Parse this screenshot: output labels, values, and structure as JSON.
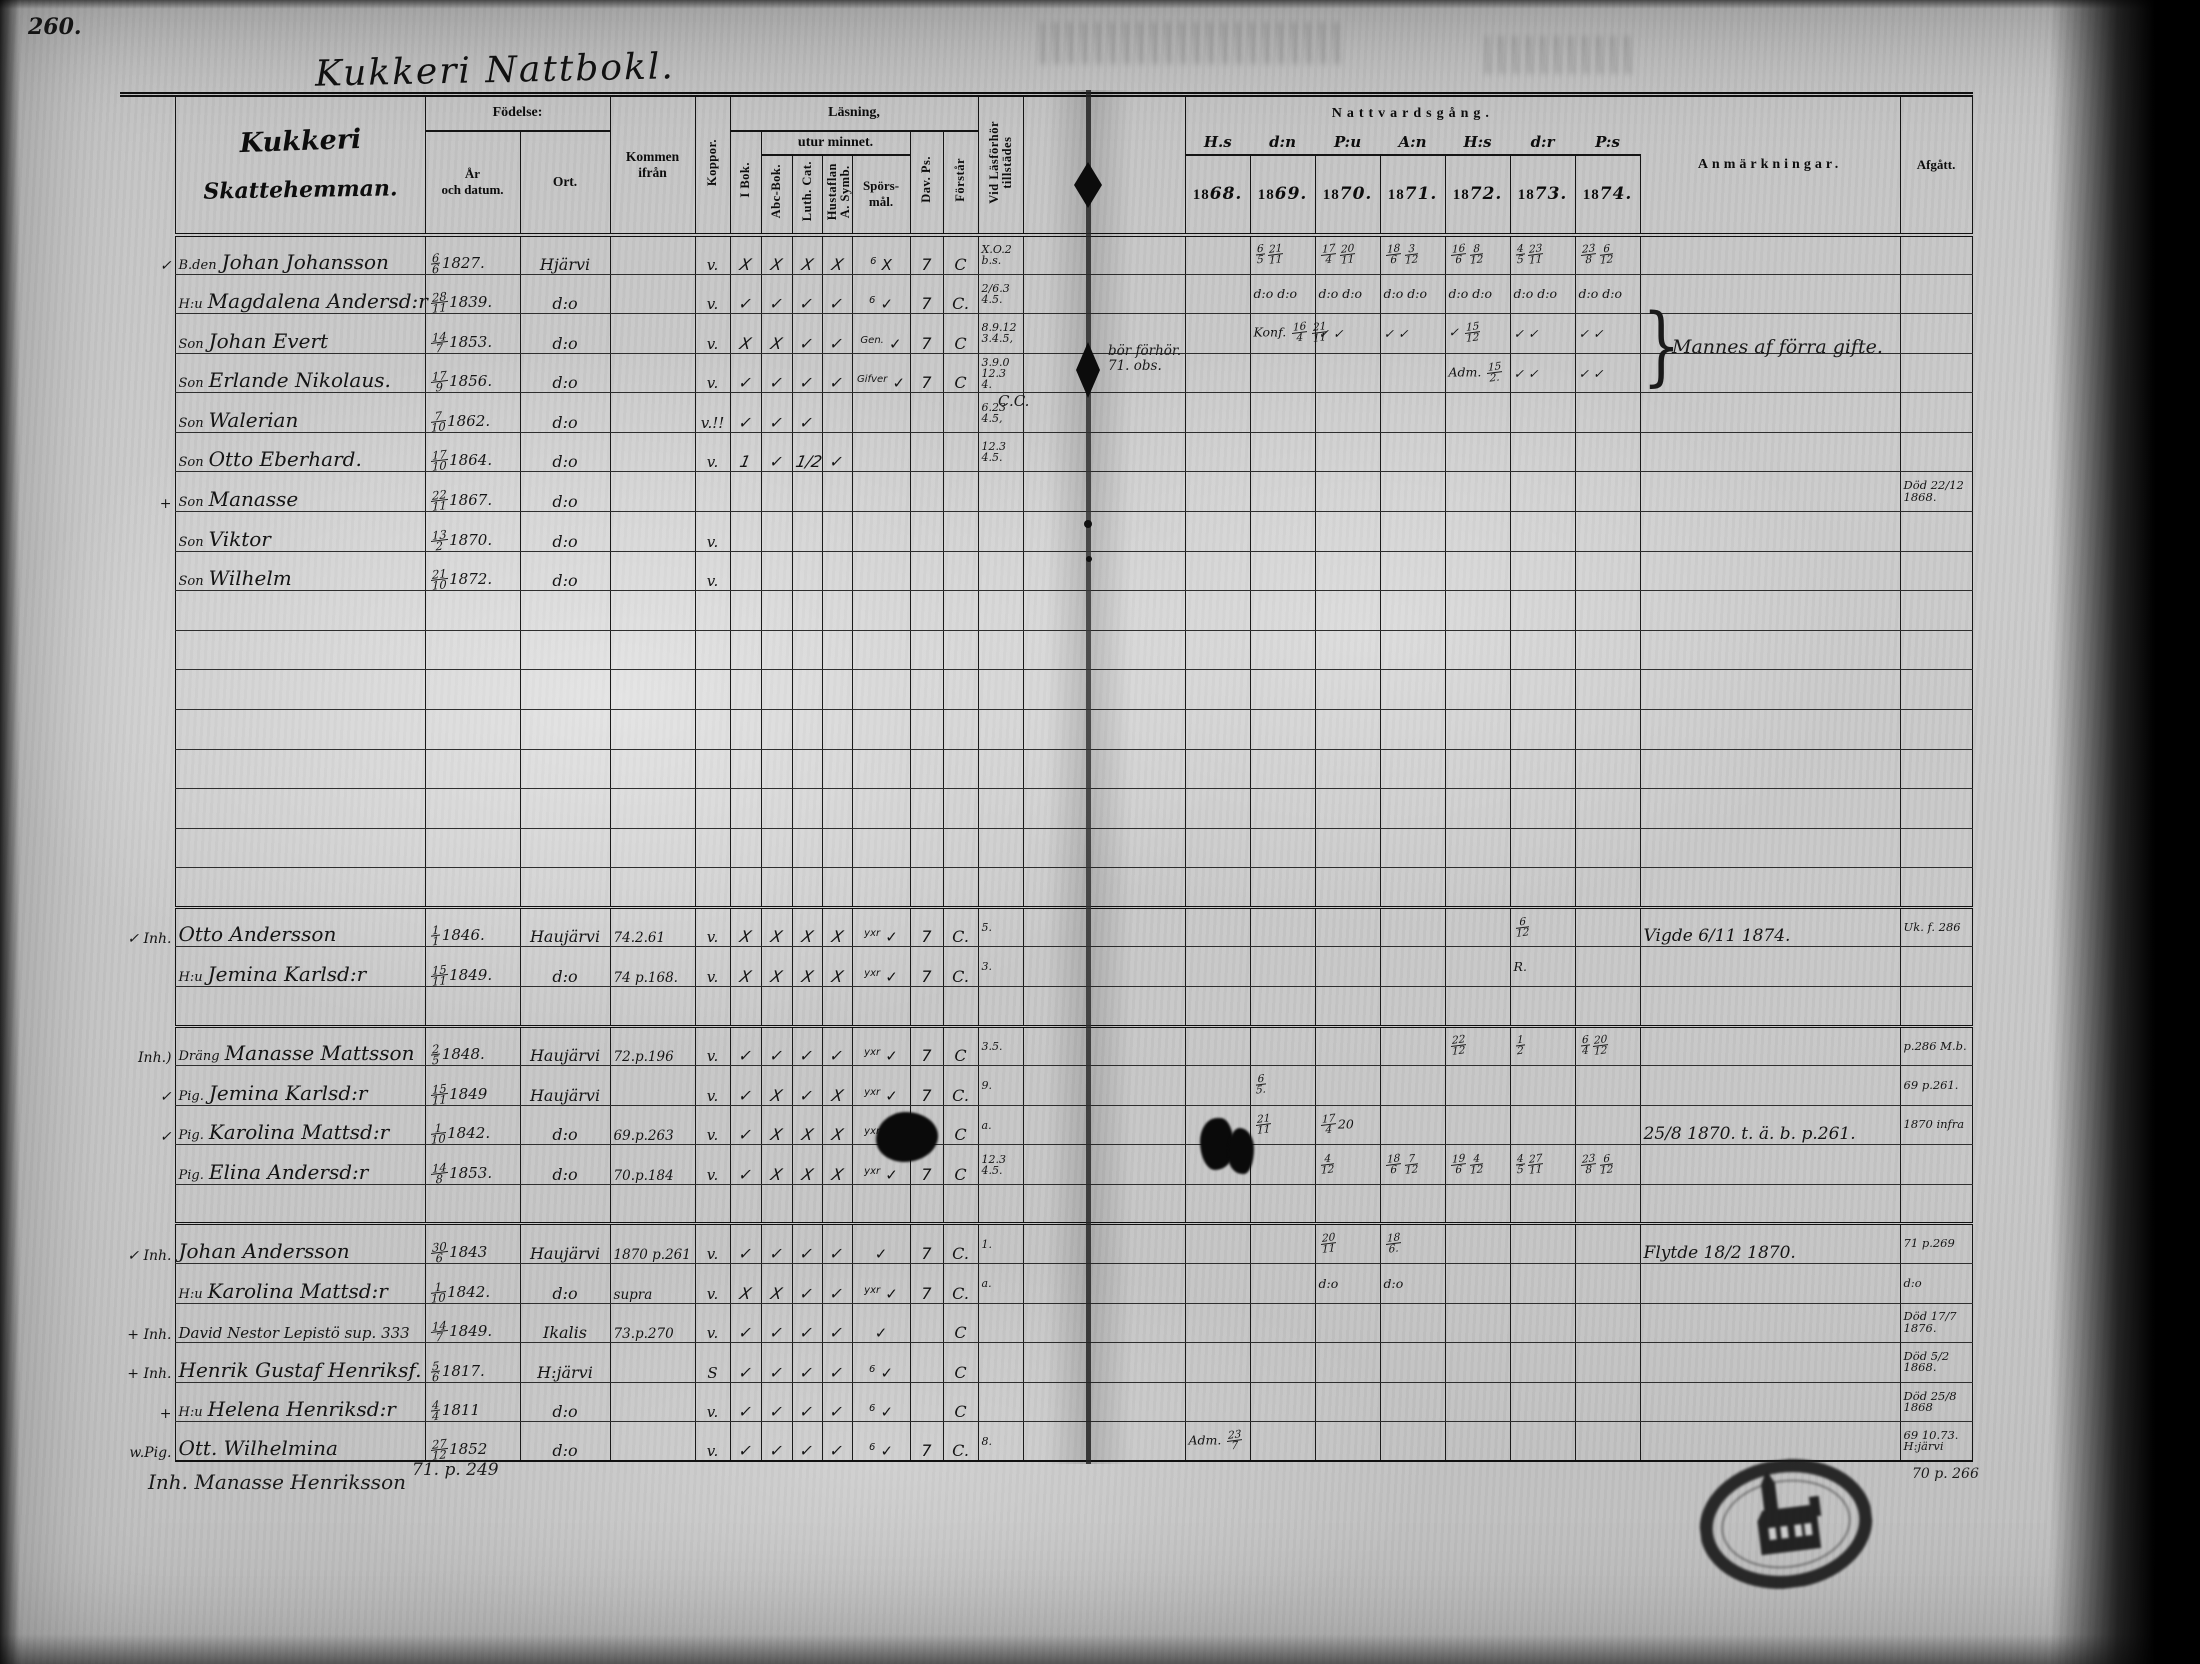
{
  "page": {
    "number": "260.",
    "title": "Kukkeri Nattbokl."
  },
  "header": {
    "farm_line1": "Kukkeri",
    "farm_line2": "Skattehemman.",
    "fodelse": "Födelse:",
    "ar_och_datum": "År\noch datum.",
    "ort": "Ort.",
    "kommen_ifran": "Kommen ifrån",
    "koppor": "Koppor.",
    "lasning": "Läsning,",
    "utur_minnet": "utur minnet.",
    "i_bok": "I Bok.",
    "abc_bok": "Abc-Bok.",
    "luth_cat": "Luth. Cat.",
    "hustaflan": "Hustaflan\nA. Symb.",
    "sporsmal": "Spörs-\nmål.",
    "dav_ps": "Dav. Ps.",
    "forstar": "Förstår",
    "vid_lasforhor": "Vid Läsförhör\ntillstädes",
    "nattvardsgang": "Nattvardsgång.",
    "year_squiggles": [
      "H.s",
      "d:n",
      "P:u",
      "A:n",
      "H:s",
      "d:r",
      "P:s"
    ],
    "years": [
      "1868.",
      "1869.",
      "1870.",
      "1871.",
      "1872.",
      "1873.",
      "1874."
    ],
    "anmarkningar": "Anmärkningar.",
    "afgatt": "Afgått."
  },
  "rows": [
    {
      "m": "✓",
      "p": "B.den",
      "n": "Johan Johansson",
      "d": "6/6 1827.",
      "o": "Hjärvi",
      "c": "v.",
      "b": [
        "X",
        "X",
        "X",
        "X"
      ],
      "sp": "6 X",
      "dav": "7",
      "fo": "C",
      "vid": "X.O.2 b.s.",
      "natt": [
        "",
        "6/5 21/11",
        "17/4 20/11",
        "18/6 3/12",
        "16/6 8/12",
        "4/5 23/11",
        "23/8 6/12"
      ]
    },
    {
      "p": "H:u",
      "n": "Magdalena Andersd:r",
      "d": "28/11 1839.",
      "o": "d:o",
      "c": "v.",
      "b": [
        "✓",
        "✓",
        "✓",
        "✓"
      ],
      "sp": "6 ✓",
      "dav": "7",
      "fo": "C.",
      "vid": "2/6.3 4.5.",
      "natt": [
        "",
        "d:o d:o",
        "d:o d:o",
        "d:o d:o",
        "d:o d:o",
        "d:o d:o",
        "d:o d:o"
      ]
    },
    {
      "p": "Son",
      "n": "Johan Evert",
      "d": "14/7 1853.",
      "o": "d:o",
      "c": "v.",
      "b": [
        "X",
        "X",
        "✓",
        "✓"
      ],
      "sp": "Gen. ✓",
      "dav": "7",
      "fo": "C",
      "vid": "8.9.12 3.4.5,",
      "natt": [
        "",
        "Konf. 16/4 21/11",
        "✓ ✓",
        "✓ ✓",
        "✓ 15/12",
        "✓ ✓",
        "✓ ✓"
      ]
    },
    {
      "p": "Son",
      "n": "Erlande Nikolaus.",
      "d": "17/9 1856.",
      "o": "d:o",
      "c": "v.",
      "b": [
        "✓",
        "✓",
        "✓",
        "✓"
      ],
      "sp": "Gifver ✓",
      "dav": "7",
      "fo": "C",
      "vid": "3.9.0 12.3 4.",
      "natt": [
        "",
        "",
        "",
        "",
        "Adm. 15/2.",
        "✓ ✓",
        "✓ ✓"
      ]
    },
    {
      "p": "Son",
      "n": "Walerian",
      "d": "7/10 1862.",
      "o": "d:o",
      "c": "v.!!",
      "b": [
        "✓",
        "✓",
        "✓",
        ""
      ],
      "sp": "",
      "dav": "",
      "fo": "",
      "vid": "6.23 4.5,"
    },
    {
      "p": "Son",
      "n": "Otto Eberhard.",
      "d": "17/10 1864.",
      "o": "d:o",
      "c": "v.",
      "b": [
        "1",
        "✓",
        "1/2",
        "✓"
      ],
      "sp": "",
      "dav": "",
      "fo": "",
      "vid": "12.3 4.5."
    },
    {
      "m": "+",
      "p": "Son",
      "n": "Manasse",
      "d": "22/11 1867.",
      "o": "d:o",
      "af": "Död 22/12 1868."
    },
    {
      "p": "Son",
      "n": "Viktor",
      "d": "13/2 1870.",
      "o": "d:o",
      "c": "v."
    },
    {
      "p": "Son",
      "n": "Wilhelm",
      "d": "21/10 1872.",
      "o": "d:o",
      "c": "v."
    },
    {},
    {},
    {},
    {},
    {},
    {},
    {},
    {},
    {
      "sep": true,
      "m": "✓ Inh.",
      "n": "Otto Andersson",
      "d": "1/1 1846.",
      "o": "Haujärvi",
      "k": "74.2.61",
      "c": "v.",
      "b": [
        "X",
        "X",
        "X",
        "X"
      ],
      "sp": "yxr ✓",
      "dav": "7",
      "fo": "C.",
      "vid": "5.",
      "natt": [
        "",
        "",
        "",
        "",
        "",
        "6/12",
        ""
      ],
      "anm": "Vigde 6/11 1874.",
      "af": "Uk. f. 286"
    },
    {
      "p": "H:u",
      "n": "Jemina Karlsd:r",
      "d": "15/11 1849.",
      "o": "d:o",
      "k": "74 p.168.",
      "c": "v.",
      "b": [
        "X",
        "X",
        "X",
        "X"
      ],
      "sp": "yxr ✓",
      "dav": "7",
      "fo": "C.",
      "vid": "3.",
      "natt": [
        "",
        "",
        "",
        "",
        "",
        "R.",
        ""
      ]
    },
    {},
    {
      "sep": true,
      "m": "Inh.)",
      "p": "Dräng",
      "n": "Manasse Mattsson",
      "d": "2/5 1848.",
      "o": "Haujärvi",
      "k": "72.p.196",
      "c": "v.",
      "b": [
        "✓",
        "✓",
        "✓",
        "✓"
      ],
      "sp": "yxr ✓",
      "dav": "7",
      "fo": "C",
      "vid": "3.5.",
      "natt": [
        "",
        "",
        "",
        "",
        "22/12",
        "1/2",
        "6/4 20/12"
      ],
      "af": "p.286 M.b."
    },
    {
      "m": "✓",
      "p": "Pig.",
      "n": "Jemina Karlsd:r",
      "d": "15/11 1849",
      "o": "Haujärvi",
      "c": "v.",
      "b": [
        "✓",
        "X",
        "✓",
        "X"
      ],
      "sp": "yxr ✓",
      "dav": "7",
      "fo": "C.",
      "vid": "9.",
      "natt": [
        "",
        "6/5.",
        "",
        "",
        "",
        "",
        ""
      ],
      "af": "69 p.261."
    },
    {
      "m": "✓",
      "p": "Pig.",
      "n": "Karolina Mattsd:r",
      "d": "1/10 1842.",
      "o": "d:o",
      "k": "69.p.263",
      "c": "v.",
      "b": [
        "✓",
        "X",
        "X",
        "X"
      ],
      "sp": "yxr ✓",
      "dav": "",
      "fo": "C",
      "vid": "a.",
      "natt": [
        "",
        "21/11",
        "17/4 20",
        "",
        "",
        "",
        ""
      ],
      "anm": "25/8 1870. t. ä. b. p.261.",
      "af": "1870 infra"
    },
    {
      "p": "Pig.",
      "n": "Elina Andersd:r",
      "d": "14/8 1853.",
      "o": "d:o",
      "k": "70.p.184",
      "c": "v.",
      "b": [
        "✓",
        "X",
        "X",
        "X"
      ],
      "sp": "yxr ✓",
      "dav": "7",
      "fo": "C",
      "vid": "12.3 4.5.",
      "natt": [
        "",
        "",
        "4/12",
        "18/6 7/12",
        "19/6 4/12",
        "4/5 27/11",
        "23/8 6/12"
      ]
    },
    {},
    {
      "sep": true,
      "m": "✓ Inh.",
      "n": "Johan Andersson",
      "d": "30/6 1843",
      "o": "Haujärvi",
      "k": "1870 p.261",
      "c": "v.",
      "b": [
        "✓",
        "✓",
        "✓",
        "✓"
      ],
      "sp": "✓",
      "dav": "7",
      "fo": "C.",
      "vid": "1.",
      "natt": [
        "",
        "",
        "20/11",
        "18/6.",
        "",
        "",
        ""
      ],
      "anm": "Flytde 18/2 1870.",
      "af": "71 p.269"
    },
    {
      "p": "H:u",
      "n": "Karolina Mattsd:r",
      "d": "1/10 1842.",
      "o": "d:o",
      "k": "supra",
      "c": "v.",
      "b": [
        "X",
        "X",
        "✓",
        "✓"
      ],
      "sp": "yxr ✓",
      "dav": "7",
      "fo": "C.",
      "vid": "a.",
      "natt": [
        "",
        "",
        "d:o",
        "d:o",
        "",
        "",
        ""
      ],
      "af": "d:o"
    },
    {
      "m": "+ Inh.",
      "n": "David Nestor Lepistö sup. 333",
      "d": "14/7 1849.",
      "o": "Ikalis",
      "k": "73.p.270",
      "c": "v.",
      "b": [
        "✓",
        "✓",
        "✓",
        "✓"
      ],
      "sp": "✓",
      "dav": "",
      "fo": "C",
      "af": "Död 17/7 1876."
    },
    {
      "m": "+ Inh.",
      "n": "Henrik Gustaf Henriksf.",
      "d": "5/6 1817.",
      "o": "H:järvi",
      "c": "S",
      "b": [
        "✓",
        "✓",
        "✓",
        "✓"
      ],
      "sp": "6 ✓",
      "dav": "",
      "fo": "C",
      "af": "Död 5/2 1868."
    },
    {
      "m": "+",
      "p": "H:u",
      "n": "Helena Henriksd:r",
      "d": "4/4 1811",
      "o": "d:o",
      "c": "v.",
      "b": [
        "✓",
        "✓",
        "✓",
        "✓"
      ],
      "sp": "6 ✓",
      "dav": "",
      "fo": "C",
      "af": "Död 25/8 1868"
    },
    {
      "m": "w.Pig.",
      "n": "Ott. Wilhelmina",
      "d": "27/12 1852",
      "o": "d:o",
      "c": "v.",
      "b": [
        "✓",
        "✓",
        "✓",
        "✓"
      ],
      "sp": "6 ✓",
      "dav": "7",
      "fo": "C.",
      "vid": "8.",
      "natt": [
        "Adm. 23/7",
        "",
        "",
        "",
        "",
        "",
        ""
      ],
      "af": "69 10.73. H:järvi"
    }
  ],
  "notes": {
    "marriage_note": "Mannes af förra gifte.",
    "brace": "}",
    "fold_note": "bör förhör. 71. obs.",
    "cc_note": "C.C."
  },
  "footer": {
    "inscription": "Inh. Manasse Henriksson",
    "page_ref": "71. p. 249",
    "stamp_ref": "70 p. 266"
  }
}
